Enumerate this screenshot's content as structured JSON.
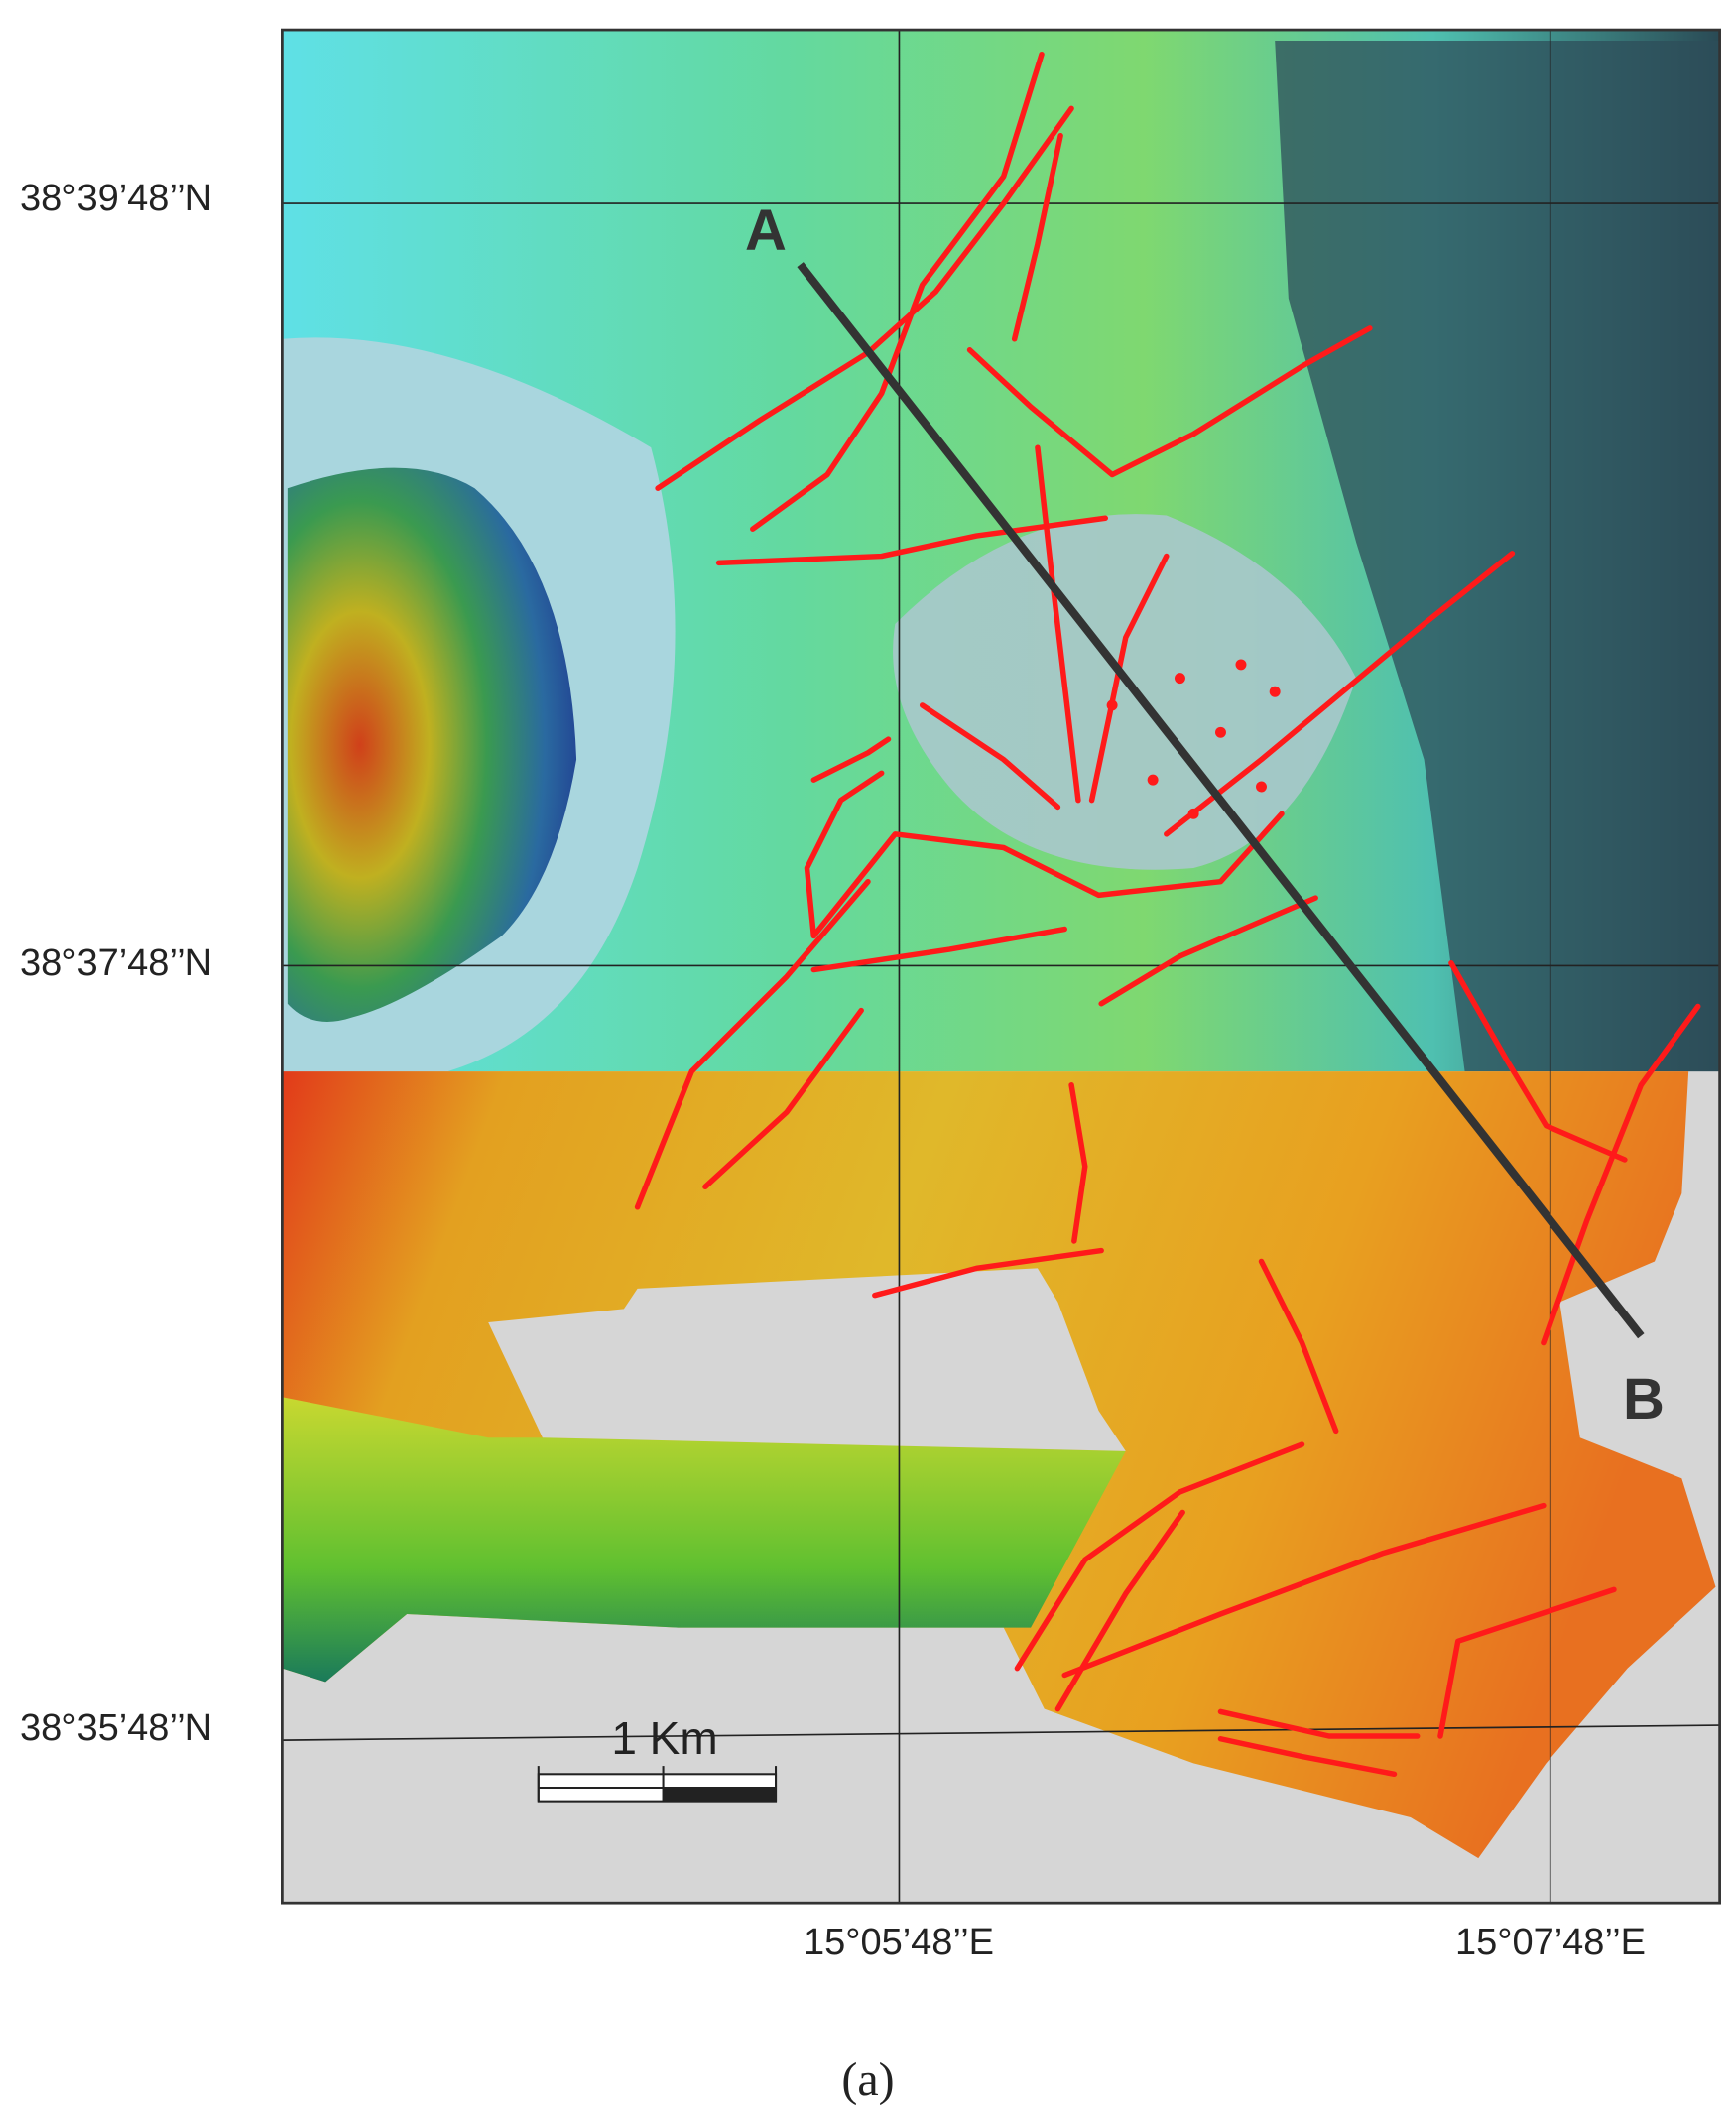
{
  "map": {
    "lat_labels": [
      "38°39’48’’N",
      "38°37’48’’N",
      "38°35’48’’N"
    ],
    "lon_labels": [
      "15°05’48’’E",
      "15°07’48’’E"
    ],
    "profile": {
      "start": "A",
      "end": "B"
    },
    "scale_bar": "1 Km",
    "caption": "(a)"
  }
}
